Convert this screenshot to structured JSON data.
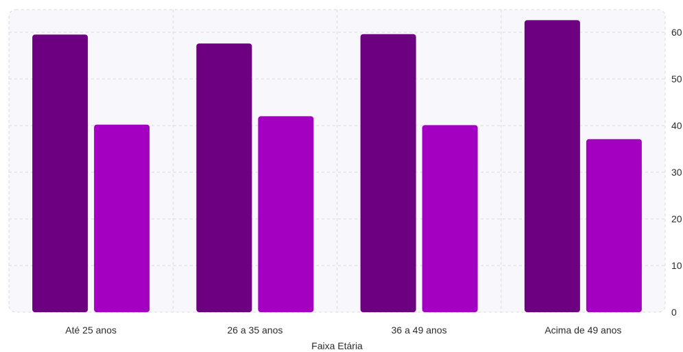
{
  "chart_data": {
    "type": "bar",
    "xlabel": "Faixa Etária",
    "ylabel": "",
    "categories": [
      "Até 25 anos",
      "26 a 35 anos",
      "36 a 49 anos",
      "Acima de 49 anos"
    ],
    "series": [
      {
        "values": [
          59.5,
          57.6,
          59.6,
          62.6
        ],
        "color": "#6c0080"
      },
      {
        "values": [
          40.2,
          42.0,
          40.1,
          37.1
        ],
        "color": "#a400c2"
      }
    ],
    "yticks": [
      "0",
      "10",
      "20",
      "30",
      "40",
      "50",
      "60"
    ],
    "ylim": [
      0,
      65
    ],
    "y_axis_position": "right",
    "grid": true,
    "legend": "none",
    "colors": {
      "plot_background": "#f8f7fb",
      "grid": "#d9d9de"
    }
  }
}
